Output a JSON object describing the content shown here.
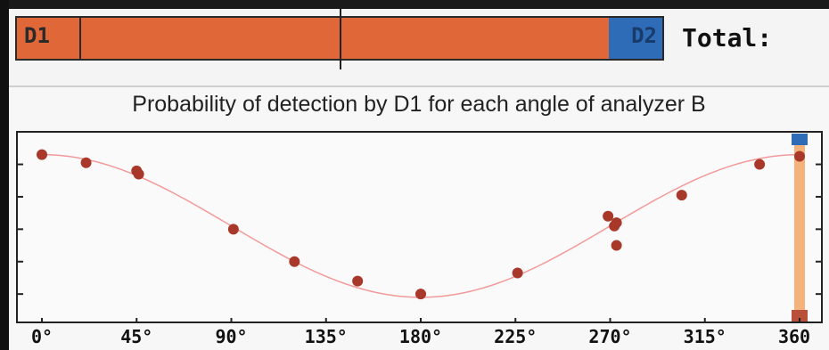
{
  "meter": {
    "d1_label": "D1",
    "d2_label": "D2",
    "total_label": "Total:",
    "d1_color": "#e06737",
    "d2_color": "#2f6cb8"
  },
  "chart_data": {
    "type": "scatter",
    "title": "Probability of detection by D1 for each angle of analyzer B",
    "xlabel": "",
    "ylabel": "",
    "xlim": [
      0,
      360
    ],
    "ylim": [
      0,
      1
    ],
    "x_ticks": [
      0,
      45,
      90,
      135,
      180,
      225,
      270,
      315,
      360
    ],
    "x_tick_labels": [
      "0°",
      "45°",
      "90°",
      "135°",
      "180°",
      "225°",
      "270°",
      "315°",
      "360"
    ],
    "grid": false,
    "points": [
      {
        "x": 0,
        "y": 0.98
      },
      {
        "x": 21,
        "y": 0.93
      },
      {
        "x": 45,
        "y": 0.88
      },
      {
        "x": 46,
        "y": 0.86
      },
      {
        "x": 91,
        "y": 0.52
      },
      {
        "x": 120,
        "y": 0.32
      },
      {
        "x": 150,
        "y": 0.2
      },
      {
        "x": 180,
        "y": 0.12
      },
      {
        "x": 226,
        "y": 0.25
      },
      {
        "x": 269,
        "y": 0.6
      },
      {
        "x": 272,
        "y": 0.54
      },
      {
        "x": 273,
        "y": 0.56
      },
      {
        "x": 273,
        "y": 0.42
      },
      {
        "x": 304,
        "y": 0.73
      },
      {
        "x": 341,
        "y": 0.92
      },
      {
        "x": 360,
        "y": 0.97
      }
    ],
    "fit_curve": {
      "type": "cosine-squared",
      "color": "#f29a9a",
      "min": 0.1,
      "max": 0.98
    },
    "slider": {
      "x": 360,
      "color": "#f5b27a",
      "top_marker_color": "#2f6cb8",
      "bottom_marker_color": "#b8503a"
    },
    "point_color": "#a8382a"
  }
}
